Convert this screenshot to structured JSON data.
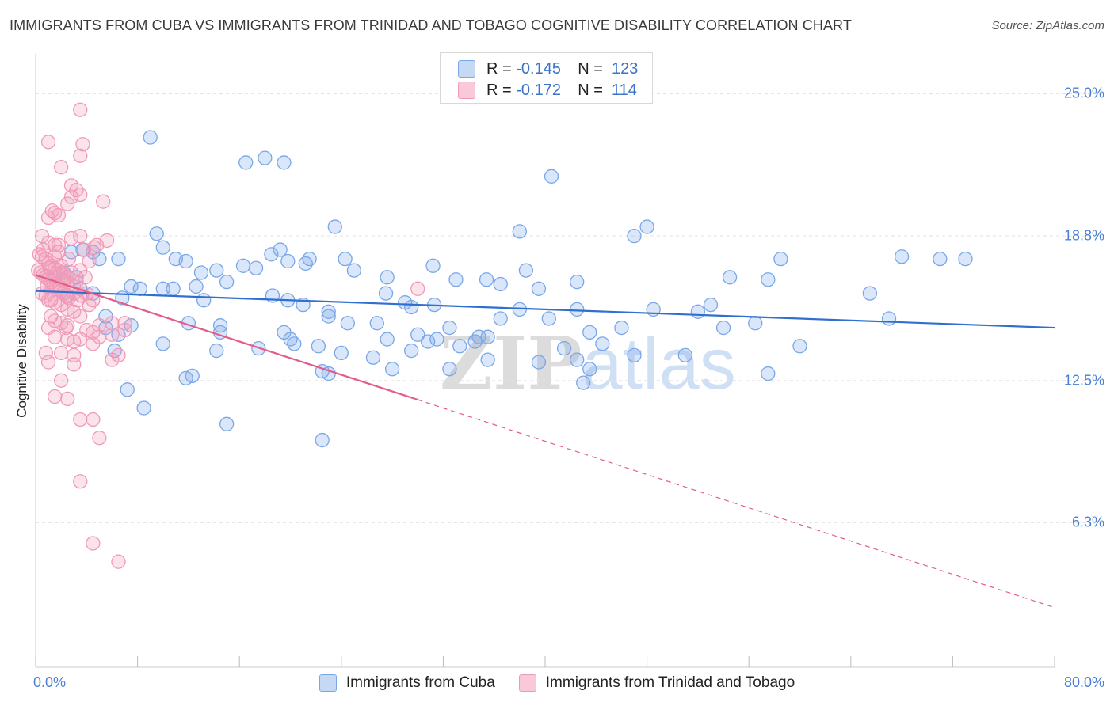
{
  "chart_data": {
    "type": "scatter",
    "title": "IMMIGRANTS FROM CUBA VS IMMIGRANTS FROM TRINIDAD AND TOBAGO COGNITIVE DISABILITY CORRELATION CHART",
    "source": "Source: ZipAtlas.com",
    "ylabel": "Cognitive Disability",
    "xlabel": "",
    "xlim": [
      0,
      80
    ],
    "ylim": [
      0,
      26.5
    ],
    "y_ticks": [
      {
        "value": 25.0,
        "label": "25.0%"
      },
      {
        "value": 18.8,
        "label": "18.8%"
      },
      {
        "value": 12.5,
        "label": "12.5%"
      },
      {
        "value": 6.3,
        "label": "6.3%"
      }
    ],
    "x_ticks": [
      {
        "value": 0,
        "label": "0.0%"
      },
      {
        "value": 80,
        "label": "80.0%"
      }
    ],
    "grid": true,
    "legend_position": "top-center",
    "watermark": {
      "zip": "ZIP",
      "atlas": "atlas"
    },
    "series": [
      {
        "name": "Immigrants from Cuba",
        "color": "#7aa7e8",
        "line_color": "#2f6fd0",
        "R": "-0.145",
        "N": "123",
        "trend": {
          "x": [
            0,
            80
          ],
          "y": [
            16.4,
            14.8
          ],
          "dashed_from": null
        },
        "points": [
          [
            9,
            23.1
          ],
          [
            18,
            22.2
          ],
          [
            16.5,
            22.0
          ],
          [
            19.5,
            22.0
          ],
          [
            40.5,
            21.4
          ],
          [
            9.5,
            18.9
          ],
          [
            10,
            18.3
          ],
          [
            38,
            19.0
          ],
          [
            23.5,
            19.2
          ],
          [
            48,
            19.2
          ],
          [
            2.8,
            18.1
          ],
          [
            3.7,
            18.2
          ],
          [
            4.5,
            18.1
          ],
          [
            5,
            17.8
          ],
          [
            6.5,
            17.8
          ],
          [
            11,
            17.8
          ],
          [
            11.8,
            17.7
          ],
          [
            13,
            17.2
          ],
          [
            14.2,
            17.3
          ],
          [
            16.3,
            17.5
          ],
          [
            17.3,
            17.4
          ],
          [
            18.5,
            18.0
          ],
          [
            19.2,
            18.2
          ],
          [
            19.8,
            17.7
          ],
          [
            21.2,
            17.6
          ],
          [
            21.5,
            17.8
          ],
          [
            24.3,
            17.8
          ],
          [
            25,
            17.3
          ],
          [
            27.6,
            17.0
          ],
          [
            31.2,
            17.5
          ],
          [
            33,
            16.9
          ],
          [
            35.4,
            16.9
          ],
          [
            27.5,
            16.3
          ],
          [
            29,
            15.9
          ],
          [
            31.3,
            15.8
          ],
          [
            1.5,
            17.0
          ],
          [
            2.2,
            17.2
          ],
          [
            3.2,
            17.0
          ],
          [
            3.5,
            16.5
          ],
          [
            7.5,
            16.6
          ],
          [
            8.2,
            16.5
          ],
          [
            10,
            16.5
          ],
          [
            10.8,
            16.5
          ],
          [
            12.6,
            16.6
          ],
          [
            15,
            16.8
          ],
          [
            2.5,
            16.2
          ],
          [
            4.5,
            16.3
          ],
          [
            6.8,
            16.1
          ],
          [
            13.2,
            16.0
          ],
          [
            18.6,
            16.2
          ],
          [
            19.8,
            16.0
          ],
          [
            21,
            15.8
          ],
          [
            23,
            15.5
          ],
          [
            24.5,
            15.0
          ],
          [
            29.5,
            15.7
          ],
          [
            36.5,
            16.7
          ],
          [
            39.5,
            16.5
          ],
          [
            38.5,
            17.3
          ],
          [
            42.5,
            16.8
          ],
          [
            47,
            18.8
          ],
          [
            46,
            14.8
          ],
          [
            40.3,
            15.2
          ],
          [
            42.5,
            15.6
          ],
          [
            5.5,
            15.3
          ],
          [
            7.5,
            14.9
          ],
          [
            6.5,
            14.5
          ],
          [
            12,
            15.0
          ],
          [
            14.5,
            14.9
          ],
          [
            14.5,
            14.6
          ],
          [
            19.5,
            14.6
          ],
          [
            20,
            14.3
          ],
          [
            20.3,
            14.1
          ],
          [
            22.2,
            14.0
          ],
          [
            23,
            15.3
          ],
          [
            26.8,
            15.0
          ],
          [
            27.6,
            14.3
          ],
          [
            30,
            14.5
          ],
          [
            30.8,
            14.2
          ],
          [
            31.5,
            14.3
          ],
          [
            32.5,
            14.8
          ],
          [
            33.3,
            14.0
          ],
          [
            34.8,
            14.4
          ],
          [
            35.5,
            14.4
          ],
          [
            5.5,
            14.8
          ],
          [
            6.2,
            13.8
          ],
          [
            10,
            14.1
          ],
          [
            14.2,
            13.8
          ],
          [
            17.5,
            13.9
          ],
          [
            24,
            13.7
          ],
          [
            26.5,
            13.5
          ],
          [
            29.5,
            13.8
          ],
          [
            32.5,
            13.0
          ],
          [
            35.5,
            13.4
          ],
          [
            39.5,
            13.3
          ],
          [
            41.5,
            13.9
          ],
          [
            43.5,
            14.6
          ],
          [
            36.5,
            15.2
          ],
          [
            38,
            15.6
          ],
          [
            42.5,
            13.4
          ],
          [
            43.5,
            13.0
          ],
          [
            47,
            13.6
          ],
          [
            51,
            13.6
          ],
          [
            48.5,
            15.6
          ],
          [
            52,
            15.5
          ],
          [
            54.5,
            17.0
          ],
          [
            53,
            15.8
          ],
          [
            58.5,
            17.8
          ],
          [
            57.5,
            16.9
          ],
          [
            54,
            14.8
          ],
          [
            56.5,
            15.0
          ],
          [
            57.5,
            12.8
          ],
          [
            60,
            14.0
          ],
          [
            65.5,
            16.3
          ],
          [
            68,
            17.9
          ],
          [
            67,
            15.2
          ],
          [
            71,
            17.8
          ],
          [
            73,
            17.8
          ],
          [
            43,
            12.4
          ],
          [
            11.8,
            12.6
          ],
          [
            12.3,
            12.7
          ],
          [
            7.2,
            12.1
          ],
          [
            8.5,
            11.3
          ],
          [
            15,
            10.6
          ],
          [
            22.5,
            12.9
          ],
          [
            23,
            12.8
          ],
          [
            28,
            13.0
          ],
          [
            22.5,
            9.9
          ],
          [
            34.5,
            14.2
          ],
          [
            44.5,
            14.1
          ]
        ]
      },
      {
        "name": "Immigrants from Trinidad and Tobago",
        "color": "#f19ab8",
        "line_color": "#e35d8c",
        "R": "-0.172",
        "N": "114",
        "trend": {
          "x": [
            0,
            80
          ],
          "y": [
            17.1,
            2.6
          ],
          "dashed_from": 30
        },
        "points": [
          [
            3.5,
            24.3
          ],
          [
            1,
            22.9
          ],
          [
            3.5,
            22.3
          ],
          [
            3.7,
            22.8
          ],
          [
            2,
            21.8
          ],
          [
            2.8,
            21.0
          ],
          [
            3.2,
            20.8
          ],
          [
            3.5,
            20.6
          ],
          [
            2.8,
            20.5
          ],
          [
            1,
            19.6
          ],
          [
            1.3,
            19.9
          ],
          [
            1.5,
            19.8
          ],
          [
            1.8,
            19.7
          ],
          [
            2.5,
            20.2
          ],
          [
            5.3,
            20.3
          ],
          [
            0.5,
            18.8
          ],
          [
            1,
            18.5
          ],
          [
            1.5,
            18.4
          ],
          [
            1.8,
            18.4
          ],
          [
            2.8,
            18.7
          ],
          [
            3.5,
            18.8
          ],
          [
            0.3,
            18.0
          ],
          [
            0.5,
            17.9
          ],
          [
            0.8,
            17.8
          ],
          [
            1,
            17.6
          ],
          [
            1.3,
            17.5
          ],
          [
            1.5,
            17.4
          ],
          [
            1.8,
            17.3
          ],
          [
            2,
            17.2
          ],
          [
            2.2,
            17.1
          ],
          [
            2.5,
            17.0
          ],
          [
            2.8,
            17.2
          ],
          [
            0.2,
            17.3
          ],
          [
            0.4,
            17.2
          ],
          [
            0.6,
            17.1
          ],
          [
            0.8,
            17.0
          ],
          [
            1,
            16.9
          ],
          [
            1.2,
            16.8
          ],
          [
            1.4,
            16.7
          ],
          [
            1.6,
            16.6
          ],
          [
            1.8,
            16.5
          ],
          [
            2,
            16.4
          ],
          [
            2.2,
            16.3
          ],
          [
            2.4,
            16.2
          ],
          [
            2.6,
            16.1
          ],
          [
            3,
            16.3
          ],
          [
            3.3,
            16.0
          ],
          [
            3.6,
            16.2
          ],
          [
            4,
            16.3
          ],
          [
            4.5,
            16.0
          ],
          [
            0.5,
            16.3
          ],
          [
            0.8,
            16.2
          ],
          [
            1.2,
            16.0
          ],
          [
            1.5,
            15.9
          ],
          [
            2,
            15.8
          ],
          [
            2.5,
            15.6
          ],
          [
            3,
            15.5
          ],
          [
            3.5,
            15.3
          ],
          [
            1.5,
            15.1
          ],
          [
            2,
            15.0
          ],
          [
            2.5,
            14.9
          ],
          [
            1,
            14.8
          ],
          [
            4,
            14.7
          ],
          [
            4.5,
            14.6
          ],
          [
            5,
            14.4
          ],
          [
            6,
            15.0
          ],
          [
            7,
            15.0
          ],
          [
            1.5,
            14.4
          ],
          [
            2.5,
            14.3
          ],
          [
            3,
            14.2
          ],
          [
            3.5,
            14.3
          ],
          [
            4.5,
            14.1
          ],
          [
            0.8,
            13.7
          ],
          [
            2,
            13.7
          ],
          [
            3,
            13.6
          ],
          [
            6.5,
            13.6
          ],
          [
            1,
            13.3
          ],
          [
            3,
            13.2
          ],
          [
            2,
            12.5
          ],
          [
            1.5,
            11.8
          ],
          [
            2.5,
            11.7
          ],
          [
            3.5,
            10.8
          ],
          [
            4.5,
            10.8
          ],
          [
            5,
            10.0
          ],
          [
            3.5,
            8.1
          ],
          [
            4.5,
            5.4
          ],
          [
            6.5,
            4.6
          ],
          [
            30,
            16.5
          ],
          [
            6,
            14.5
          ],
          [
            6,
            13.4
          ],
          [
            7,
            14.7
          ],
          [
            5,
            14.9
          ],
          [
            1.5,
            17.9
          ],
          [
            3.8,
            18.2
          ],
          [
            4.2,
            17.7
          ],
          [
            2.5,
            16.8
          ],
          [
            3,
            16.6
          ],
          [
            1,
            16.0
          ],
          [
            2,
            17.5
          ],
          [
            3.5,
            17.3
          ],
          [
            4.6,
            18.3
          ],
          [
            5.6,
            18.6
          ],
          [
            1.2,
            15.3
          ],
          [
            2.4,
            14.8
          ],
          [
            3.2,
            16.8
          ],
          [
            2.6,
            17.8
          ],
          [
            1.8,
            18.1
          ],
          [
            4.8,
            18.4
          ],
          [
            4.2,
            15.8
          ],
          [
            0.6,
            18.2
          ],
          [
            0.9,
            16.6
          ],
          [
            2.1,
            16.9
          ],
          [
            3.9,
            17.0
          ],
          [
            1.1,
            17.4
          ]
        ]
      }
    ]
  }
}
